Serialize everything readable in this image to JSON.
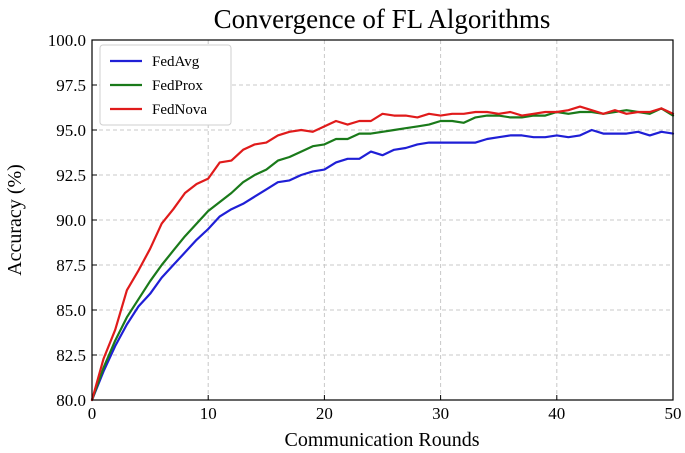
{
  "chart_data": {
    "type": "line",
    "title": "Convergence of FL Algorithms",
    "xlabel": "Communication Rounds",
    "ylabel": "Accuracy (%)",
    "xlim": [
      0,
      50
    ],
    "ylim": [
      80.0,
      100.0
    ],
    "xticks": [
      0,
      10,
      20,
      30,
      40,
      50
    ],
    "yticks": [
      80.0,
      82.5,
      85.0,
      87.5,
      90.0,
      92.5,
      95.0,
      97.5,
      100.0
    ],
    "xtick_labels": [
      "0",
      "10",
      "20",
      "30",
      "40",
      "50"
    ],
    "ytick_labels": [
      "80.0",
      "82.5",
      "85.0",
      "87.5",
      "90.0",
      "92.5",
      "95.0",
      "97.5",
      "100.0"
    ],
    "grid": true,
    "legend_position": "top-left",
    "x": [
      0,
      1,
      2,
      3,
      4,
      5,
      6,
      7,
      8,
      9,
      10,
      11,
      12,
      13,
      14,
      15,
      16,
      17,
      18,
      19,
      20,
      21,
      22,
      23,
      24,
      25,
      26,
      27,
      28,
      29,
      30,
      31,
      32,
      33,
      34,
      35,
      36,
      37,
      38,
      39,
      40,
      41,
      42,
      43,
      44,
      45,
      46,
      47,
      48,
      49,
      50
    ],
    "series": [
      {
        "name": "FedAvg",
        "color": "#1f1fd6",
        "values": [
          80.0,
          81.6,
          83.0,
          84.2,
          85.2,
          85.9,
          86.8,
          87.5,
          88.2,
          88.9,
          89.5,
          90.2,
          90.6,
          90.9,
          91.3,
          91.7,
          92.1,
          92.2,
          92.5,
          92.7,
          92.8,
          93.2,
          93.4,
          93.4,
          93.8,
          93.6,
          93.9,
          94.0,
          94.2,
          94.3,
          94.3,
          94.3,
          94.3,
          94.3,
          94.5,
          94.6,
          94.7,
          94.7,
          94.6,
          94.6,
          94.7,
          94.6,
          94.7,
          95.0,
          94.8,
          94.8,
          94.8,
          94.9,
          94.7,
          94.9,
          94.8
        ]
      },
      {
        "name": "FedProx",
        "color": "#1a7a1a",
        "values": [
          80.0,
          81.8,
          83.3,
          84.6,
          85.6,
          86.6,
          87.5,
          88.3,
          89.1,
          89.8,
          90.5,
          91.0,
          91.5,
          92.1,
          92.5,
          92.8,
          93.3,
          93.5,
          93.8,
          94.1,
          94.2,
          94.5,
          94.5,
          94.8,
          94.8,
          94.9,
          95.0,
          95.1,
          95.2,
          95.3,
          95.5,
          95.5,
          95.4,
          95.7,
          95.8,
          95.8,
          95.7,
          95.7,
          95.8,
          95.8,
          96.0,
          95.9,
          96.0,
          96.0,
          95.9,
          96.0,
          96.1,
          96.0,
          95.9,
          96.2,
          95.8
        ]
      },
      {
        "name": "FedNova",
        "color": "#e01b1b",
        "values": [
          80.0,
          82.3,
          83.9,
          86.1,
          87.2,
          88.4,
          89.8,
          90.6,
          91.5,
          92.0,
          92.3,
          93.2,
          93.3,
          93.9,
          94.2,
          94.3,
          94.7,
          94.9,
          95.0,
          94.9,
          95.2,
          95.5,
          95.3,
          95.5,
          95.5,
          95.9,
          95.8,
          95.8,
          95.7,
          95.9,
          95.8,
          95.9,
          95.9,
          96.0,
          96.0,
          95.9,
          96.0,
          95.8,
          95.9,
          96.0,
          96.0,
          96.1,
          96.3,
          96.1,
          95.9,
          96.1,
          95.9,
          96.0,
          96.0,
          96.2,
          95.9
        ]
      }
    ]
  }
}
